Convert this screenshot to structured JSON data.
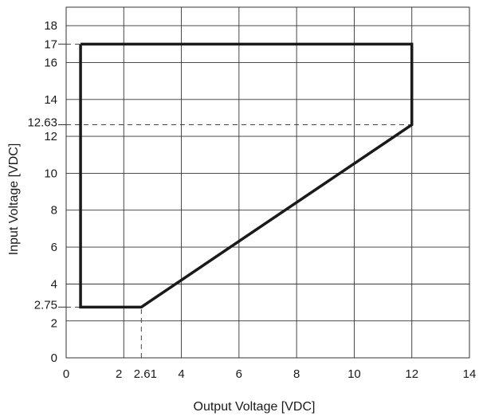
{
  "chart_data": {
    "type": "line",
    "title": "",
    "xlabel": "Output Voltage [VDC]",
    "ylabel": "Input Voltage [VDC]",
    "xlim": [
      0,
      14
    ],
    "ylim": [
      0,
      19
    ],
    "grid": true,
    "x_ticks": [
      {
        "value": 0,
        "label": "0"
      },
      {
        "value": 2,
        "label": "2"
      },
      {
        "value": 2.61,
        "label": "2.61"
      },
      {
        "value": 4,
        "label": "4"
      },
      {
        "value": 6,
        "label": "6"
      },
      {
        "value": 8,
        "label": "8"
      },
      {
        "value": 10,
        "label": "10"
      },
      {
        "value": 12,
        "label": "12"
      },
      {
        "value": 14,
        "label": "14"
      }
    ],
    "y_ticks": [
      {
        "value": 0,
        "label": "0"
      },
      {
        "value": 2,
        "label": "2"
      },
      {
        "value": 2.75,
        "label": "2.75"
      },
      {
        "value": 4,
        "label": "4"
      },
      {
        "value": 6,
        "label": "6"
      },
      {
        "value": 8,
        "label": "8"
      },
      {
        "value": 10,
        "label": "10"
      },
      {
        "value": 12,
        "label": "12"
      },
      {
        "value": 12.63,
        "label": "12.63"
      },
      {
        "value": 14,
        "label": "14"
      },
      {
        "value": 16,
        "label": "16"
      },
      {
        "value": 17,
        "label": "17"
      },
      {
        "value": 18,
        "label": "18"
      }
    ],
    "series": [
      {
        "x": [
          0.5,
          12,
          12,
          2.61,
          0.5,
          0.5
        ],
        "y": [
          17,
          17,
          12.63,
          2.75,
          2.75,
          17
        ],
        "color": "#1a1a1a"
      }
    ],
    "reference_lines": [
      {
        "x": [
          0,
          0.5
        ],
        "y": [
          17,
          17
        ]
      },
      {
        "x": [
          0,
          12
        ],
        "y": [
          12.63,
          12.63
        ]
      },
      {
        "x": [
          0,
          0.5
        ],
        "y": [
          2.75,
          2.75
        ]
      },
      {
        "x": [
          2.61,
          2.61
        ],
        "y": [
          0,
          2.75
        ]
      }
    ],
    "colors": {
      "grid": "#333333",
      "line": "#1a1a1a",
      "text": "#1a1a1a"
    }
  }
}
